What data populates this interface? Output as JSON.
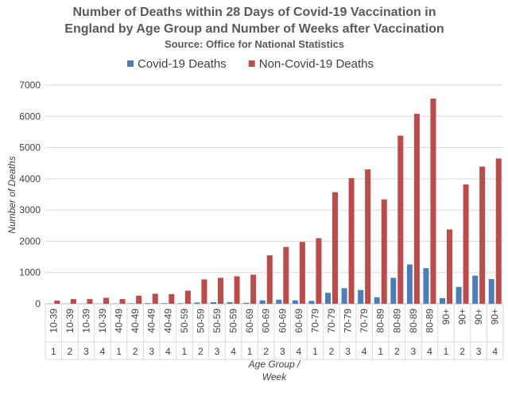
{
  "chart_data": {
    "type": "bar",
    "title": [
      "Number of Deaths within 28 Days of Covid-19 Vaccination in",
      "England by Age Group and Number of Weeks after Vaccination"
    ],
    "subtitle": "Source: Office for National Statistics",
    "ylabel": "Number of Deaths",
    "xlabel": [
      "Age Group /",
      "Week"
    ],
    "categories": [
      "10-39",
      "10-39",
      "10-39",
      "10-39",
      "40-49",
      "40-49",
      "40-49",
      "40-49",
      "50-59",
      "50-59",
      "50-59",
      "50-59",
      "60-69",
      "60-69",
      "60-69",
      "60-69",
      "70-79",
      "70-79",
      "70-79",
      "70-79",
      "80-89",
      "80-89",
      "80-89",
      "80-89",
      "90+",
      "90+",
      "90+",
      "90+"
    ],
    "weeks": [
      1,
      2,
      3,
      4,
      1,
      2,
      3,
      4,
      1,
      2,
      3,
      4,
      1,
      2,
      3,
      4,
      1,
      2,
      3,
      4,
      1,
      2,
      3,
      4,
      1,
      2,
      3,
      4
    ],
    "series": [
      {
        "name": "Covid-19 Deaths",
        "color": "#4a7ebb",
        "values": [
          3,
          4,
          4,
          5,
          8,
          15,
          20,
          20,
          15,
          40,
          50,
          50,
          30,
          110,
          130,
          110,
          90,
          350,
          500,
          440,
          210,
          830,
          1260,
          1140,
          180,
          540,
          900,
          790
        ]
      },
      {
        "name": "Non-Covid-19 Deaths",
        "color": "#be4b48",
        "values": [
          100,
          150,
          150,
          190,
          150,
          260,
          320,
          310,
          420,
          780,
          830,
          880,
          930,
          1550,
          1820,
          1980,
          2100,
          3570,
          4020,
          4300,
          3340,
          5380,
          6080,
          6570,
          2380,
          3820,
          4390,
          4650
        ]
      }
    ],
    "ylim": [
      0,
      7000
    ],
    "yticks": [
      0,
      1000,
      2000,
      3000,
      4000,
      5000,
      6000,
      7000
    ],
    "grid": true,
    "legend": "top"
  }
}
